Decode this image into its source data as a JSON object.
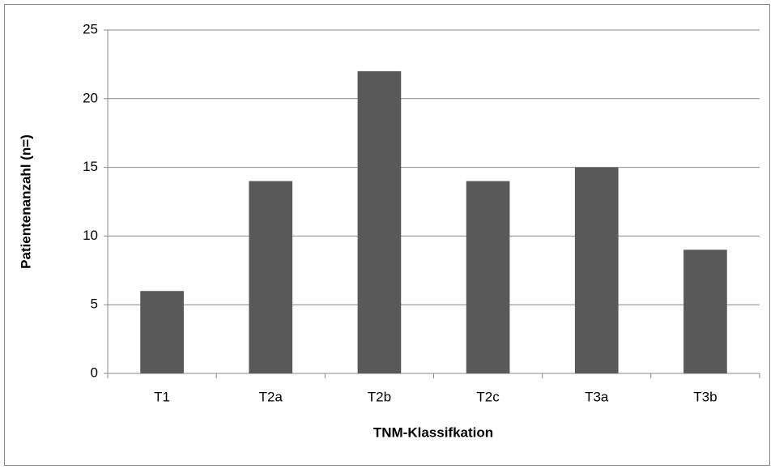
{
  "chart_data": {
    "type": "bar",
    "x_label": "TNM-Klassifkation",
    "y_label": "Patientenanzahl (n=)",
    "categories": [
      "T1",
      "T2a",
      "T2b",
      "T2c",
      "T3a",
      "T3b"
    ],
    "values": [
      6,
      14,
      22,
      14,
      15,
      9
    ],
    "color": "#595959",
    "ylim": [
      0,
      25
    ],
    "yticks": [
      0,
      5,
      10,
      15,
      20,
      25
    ],
    "grid": true
  }
}
